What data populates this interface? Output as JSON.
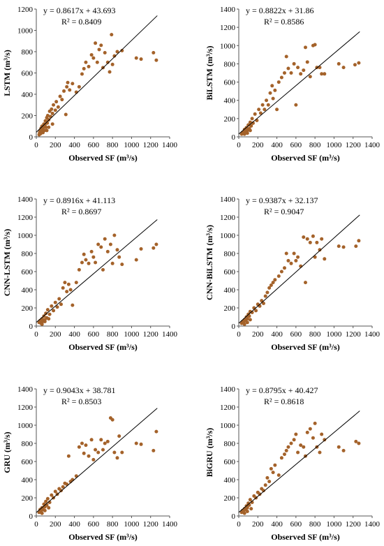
{
  "chart_data": [
    {
      "type": "scatter",
      "ylabel": "LSTM (m³/s)",
      "xlabel": "Observed SF (m³/s)",
      "xlim": [
        0,
        1400
      ],
      "ylim": [
        0,
        1200
      ],
      "xticks": [
        0,
        200,
        400,
        600,
        800,
        1000,
        1200,
        1400
      ],
      "yticks": [
        0,
        200,
        400,
        600,
        800,
        1000,
        1200
      ],
      "equation": "y = 0.8617x + 43.693",
      "r2": "R² = 0.8409",
      "slope": 0.8617,
      "intercept": 43.693,
      "grid": false,
      "marker_color": "#a4622a",
      "points": [
        [
          30,
          20
        ],
        [
          35,
          40
        ],
        [
          40,
          60
        ],
        [
          45,
          30
        ],
        [
          50,
          80
        ],
        [
          55,
          50
        ],
        [
          60,
          100
        ],
        [
          65,
          70
        ],
        [
          70,
          40
        ],
        [
          75,
          90
        ],
        [
          80,
          120
        ],
        [
          85,
          60
        ],
        [
          90,
          110
        ],
        [
          95,
          150
        ],
        [
          100,
          90
        ],
        [
          110,
          180
        ],
        [
          115,
          130
        ],
        [
          120,
          200
        ],
        [
          130,
          160
        ],
        [
          140,
          240
        ],
        [
          150,
          190
        ],
        [
          160,
          260
        ],
        [
          170,
          220
        ],
        [
          180,
          300
        ],
        [
          200,
          250
        ],
        [
          210,
          330
        ],
        [
          230,
          280
        ],
        [
          250,
          380
        ],
        [
          270,
          350
        ],
        [
          290,
          430
        ],
        [
          310,
          210
        ],
        [
          320,
          470
        ],
        [
          330,
          510
        ],
        [
          350,
          440
        ],
        [
          380,
          500
        ],
        [
          420,
          420
        ],
        [
          450,
          470
        ],
        [
          480,
          590
        ],
        [
          500,
          640
        ],
        [
          520,
          700
        ],
        [
          550,
          660
        ],
        [
          580,
          770
        ],
        [
          600,
          740
        ],
        [
          620,
          880
        ],
        [
          640,
          700
        ],
        [
          660,
          820
        ],
        [
          680,
          860
        ],
        [
          700,
          650
        ],
        [
          720,
          790
        ],
        [
          750,
          700
        ],
        [
          770,
          610
        ],
        [
          790,
          960
        ],
        [
          800,
          680
        ],
        [
          820,
          760
        ],
        [
          850,
          800
        ],
        [
          900,
          810
        ],
        [
          1050,
          740
        ],
        [
          1100,
          730
        ],
        [
          1230,
          790
        ],
        [
          1260,
          720
        ],
        [
          110,
          60
        ],
        [
          130,
          90
        ],
        [
          170,
          120
        ]
      ]
    },
    {
      "type": "scatter",
      "ylabel": "BiLSTM (m³/s)",
      "xlabel": "Observed SF (m³/s)",
      "xlim": [
        0,
        1400
      ],
      "ylim": [
        0,
        1400
      ],
      "xticks": [
        0,
        200,
        400,
        600,
        800,
        1000,
        1200,
        1400
      ],
      "yticks": [
        0,
        200,
        400,
        600,
        800,
        1000,
        1200,
        1400
      ],
      "equation": "y = 0.8822x + 31.86",
      "r2": "R² = 0.8586",
      "slope": 0.8822,
      "intercept": 31.86,
      "grid": false,
      "marker_color": "#a4622a",
      "points": [
        [
          30,
          30
        ],
        [
          40,
          50
        ],
        [
          50,
          40
        ],
        [
          60,
          80
        ],
        [
          70,
          60
        ],
        [
          80,
          100
        ],
        [
          90,
          70
        ],
        [
          100,
          130
        ],
        [
          110,
          90
        ],
        [
          120,
          160
        ],
        [
          130,
          120
        ],
        [
          140,
          200
        ],
        [
          150,
          150
        ],
        [
          170,
          250
        ],
        [
          190,
          180
        ],
        [
          210,
          300
        ],
        [
          230,
          260
        ],
        [
          250,
          350
        ],
        [
          270,
          300
        ],
        [
          290,
          400
        ],
        [
          310,
          350
        ],
        [
          330,
          480
        ],
        [
          350,
          560
        ],
        [
          360,
          420
        ],
        [
          380,
          510
        ],
        [
          400,
          300
        ],
        [
          420,
          600
        ],
        [
          450,
          650
        ],
        [
          480,
          700
        ],
        [
          500,
          880
        ],
        [
          520,
          750
        ],
        [
          550,
          700
        ],
        [
          580,
          800
        ],
        [
          600,
          350
        ],
        [
          620,
          760
        ],
        [
          650,
          690
        ],
        [
          680,
          730
        ],
        [
          700,
          980
        ],
        [
          720,
          820
        ],
        [
          750,
          660
        ],
        [
          780,
          1000
        ],
        [
          800,
          1010
        ],
        [
          820,
          760
        ],
        [
          850,
          760
        ],
        [
          870,
          690
        ],
        [
          900,
          690
        ],
        [
          1050,
          800
        ],
        [
          1100,
          760
        ],
        [
          1220,
          790
        ],
        [
          1260,
          810
        ],
        [
          60,
          30
        ],
        [
          90,
          40
        ],
        [
          120,
          70
        ]
      ]
    },
    {
      "type": "scatter",
      "ylabel": "CNN-LSTM (m³/s)",
      "xlabel": "Observed SF (m³/s)",
      "xlim": [
        0,
        1400
      ],
      "ylim": [
        0,
        1400
      ],
      "xticks": [
        0,
        200,
        400,
        600,
        800,
        1000,
        1200,
        1400
      ],
      "yticks": [
        0,
        200,
        400,
        600,
        800,
        1000,
        1200,
        1400
      ],
      "equation": "y = 0.8916x + 41.113",
      "r2": "R² = 0.8697",
      "slope": 0.8916,
      "intercept": 41.113,
      "grid": false,
      "marker_color": "#a4622a",
      "points": [
        [
          30,
          40
        ],
        [
          40,
          60
        ],
        [
          50,
          30
        ],
        [
          60,
          80
        ],
        [
          70,
          50
        ],
        [
          80,
          110
        ],
        [
          90,
          70
        ],
        [
          100,
          140
        ],
        [
          110,
          90
        ],
        [
          120,
          180
        ],
        [
          140,
          130
        ],
        [
          160,
          220
        ],
        [
          180,
          170
        ],
        [
          200,
          260
        ],
        [
          220,
          210
        ],
        [
          240,
          300
        ],
        [
          260,
          240
        ],
        [
          280,
          420
        ],
        [
          300,
          480
        ],
        [
          320,
          380
        ],
        [
          340,
          460
        ],
        [
          360,
          400
        ],
        [
          380,
          230
        ],
        [
          420,
          480
        ],
        [
          450,
          620
        ],
        [
          480,
          700
        ],
        [
          500,
          790
        ],
        [
          520,
          730
        ],
        [
          550,
          690
        ],
        [
          580,
          820
        ],
        [
          600,
          760
        ],
        [
          620,
          700
        ],
        [
          650,
          900
        ],
        [
          680,
          870
        ],
        [
          700,
          620
        ],
        [
          720,
          960
        ],
        [
          750,
          820
        ],
        [
          780,
          900
        ],
        [
          800,
          690
        ],
        [
          820,
          1000
        ],
        [
          850,
          840
        ],
        [
          870,
          760
        ],
        [
          900,
          680
        ],
        [
          1050,
          730
        ],
        [
          1100,
          850
        ],
        [
          1230,
          860
        ],
        [
          1260,
          900
        ],
        [
          60,
          20
        ],
        [
          90,
          50
        ],
        [
          130,
          80
        ]
      ]
    },
    {
      "type": "scatter",
      "ylabel": "CNN-BiLSTM (m³/s)",
      "xlabel": "Observed SF (m³/s)",
      "xlim": [
        0,
        1400
      ],
      "ylim": [
        0,
        1400
      ],
      "xticks": [
        0,
        200,
        400,
        600,
        800,
        1000,
        1200,
        1400
      ],
      "yticks": [
        0,
        200,
        400,
        600,
        800,
        1000,
        1200,
        1400
      ],
      "equation": "y = 0.9387x + 32.137",
      "r2": "R² = 0.9047",
      "slope": 0.9387,
      "intercept": 32.137,
      "grid": false,
      "marker_color": "#a4622a",
      "points": [
        [
          30,
          30
        ],
        [
          40,
          50
        ],
        [
          50,
          40
        ],
        [
          60,
          70
        ],
        [
          70,
          60
        ],
        [
          80,
          100
        ],
        [
          90,
          80
        ],
        [
          100,
          130
        ],
        [
          110,
          110
        ],
        [
          120,
          160
        ],
        [
          140,
          150
        ],
        [
          160,
          200
        ],
        [
          180,
          170
        ],
        [
          200,
          240
        ],
        [
          220,
          220
        ],
        [
          240,
          280
        ],
        [
          260,
          250
        ],
        [
          280,
          330
        ],
        [
          300,
          370
        ],
        [
          320,
          420
        ],
        [
          340,
          450
        ],
        [
          360,
          480
        ],
        [
          380,
          510
        ],
        [
          420,
          550
        ],
        [
          450,
          600
        ],
        [
          480,
          640
        ],
        [
          500,
          800
        ],
        [
          520,
          720
        ],
        [
          550,
          690
        ],
        [
          580,
          800
        ],
        [
          600,
          720
        ],
        [
          620,
          760
        ],
        [
          650,
          660
        ],
        [
          680,
          980
        ],
        [
          700,
          480
        ],
        [
          720,
          960
        ],
        [
          750,
          920
        ],
        [
          780,
          990
        ],
        [
          800,
          760
        ],
        [
          820,
          920
        ],
        [
          850,
          840
        ],
        [
          870,
          960
        ],
        [
          900,
          740
        ],
        [
          1050,
          880
        ],
        [
          1100,
          870
        ],
        [
          1230,
          880
        ],
        [
          1260,
          940
        ],
        [
          60,
          20
        ],
        [
          90,
          40
        ],
        [
          120,
          70
        ]
      ]
    },
    {
      "type": "scatter",
      "ylabel": "GRU (m³/s)",
      "xlabel": "Observed SF (m³/s)",
      "xlim": [
        0,
        1400
      ],
      "ylim": [
        0,
        1400
      ],
      "xticks": [
        0,
        200,
        400,
        600,
        800,
        1000,
        1200,
        1400
      ],
      "yticks": [
        0,
        200,
        400,
        600,
        800,
        1000,
        1200,
        1400
      ],
      "equation": "y = 0.9043x + 38.781",
      "r2": "R² = 0.8503",
      "slope": 0.9043,
      "intercept": 38.781,
      "grid": false,
      "marker_color": "#a4622a",
      "points": [
        [
          30,
          40
        ],
        [
          40,
          70
        ],
        [
          50,
          50
        ],
        [
          60,
          90
        ],
        [
          70,
          70
        ],
        [
          80,
          130
        ],
        [
          90,
          100
        ],
        [
          100,
          160
        ],
        [
          110,
          120
        ],
        [
          120,
          190
        ],
        [
          140,
          150
        ],
        [
          160,
          230
        ],
        [
          180,
          200
        ],
        [
          200,
          270
        ],
        [
          220,
          240
        ],
        [
          240,
          300
        ],
        [
          260,
          280
        ],
        [
          280,
          320
        ],
        [
          300,
          360
        ],
        [
          320,
          350
        ],
        [
          340,
          660
        ],
        [
          360,
          380
        ],
        [
          380,
          400
        ],
        [
          420,
          440
        ],
        [
          450,
          760
        ],
        [
          480,
          800
        ],
        [
          500,
          690
        ],
        [
          520,
          780
        ],
        [
          550,
          660
        ],
        [
          580,
          840
        ],
        [
          600,
          620
        ],
        [
          620,
          730
        ],
        [
          650,
          700
        ],
        [
          680,
          840
        ],
        [
          700,
          730
        ],
        [
          720,
          800
        ],
        [
          750,
          820
        ],
        [
          780,
          1080
        ],
        [
          800,
          1060
        ],
        [
          820,
          700
        ],
        [
          850,
          640
        ],
        [
          870,
          880
        ],
        [
          900,
          700
        ],
        [
          1050,
          800
        ],
        [
          1100,
          790
        ],
        [
          1230,
          720
        ],
        [
          1260,
          930
        ],
        [
          60,
          30
        ],
        [
          90,
          60
        ],
        [
          130,
          90
        ]
      ]
    },
    {
      "type": "scatter",
      "ylabel": "BiGRU (m³/s)",
      "xlabel": "Observed SF (m³/s)",
      "xlim": [
        0,
        1400
      ],
      "ylim": [
        0,
        1400
      ],
      "xticks": [
        0,
        200,
        400,
        600,
        800,
        1000,
        1200,
        1400
      ],
      "yticks": [
        0,
        200,
        400,
        600,
        800,
        1000,
        1200,
        1400
      ],
      "equation": "y = 0.8795x + 40.427",
      "r2": "R² = 0.8618",
      "slope": 0.8795,
      "intercept": 40.427,
      "grid": false,
      "marker_color": "#a4622a",
      "points": [
        [
          30,
          40
        ],
        [
          40,
          60
        ],
        [
          50,
          50
        ],
        [
          60,
          80
        ],
        [
          70,
          70
        ],
        [
          80,
          110
        ],
        [
          90,
          90
        ],
        [
          100,
          140
        ],
        [
          110,
          120
        ],
        [
          120,
          180
        ],
        [
          140,
          150
        ],
        [
          160,
          220
        ],
        [
          180,
          200
        ],
        [
          200,
          260
        ],
        [
          220,
          240
        ],
        [
          240,
          300
        ],
        [
          260,
          280
        ],
        [
          280,
          340
        ],
        [
          300,
          420
        ],
        [
          320,
          380
        ],
        [
          340,
          520
        ],
        [
          360,
          480
        ],
        [
          380,
          560
        ],
        [
          420,
          450
        ],
        [
          450,
          640
        ],
        [
          480,
          680
        ],
        [
          500,
          720
        ],
        [
          520,
          760
        ],
        [
          550,
          800
        ],
        [
          580,
          840
        ],
        [
          600,
          900
        ],
        [
          620,
          700
        ],
        [
          650,
          780
        ],
        [
          680,
          760
        ],
        [
          700,
          660
        ],
        [
          720,
          920
        ],
        [
          750,
          960
        ],
        [
          780,
          860
        ],
        [
          800,
          1020
        ],
        [
          820,
          760
        ],
        [
          850,
          700
        ],
        [
          870,
          900
        ],
        [
          900,
          840
        ],
        [
          1050,
          760
        ],
        [
          1100,
          720
        ],
        [
          1230,
          820
        ],
        [
          1260,
          800
        ],
        [
          60,
          30
        ],
        [
          90,
          50
        ],
        [
          130,
          80
        ]
      ]
    }
  ]
}
